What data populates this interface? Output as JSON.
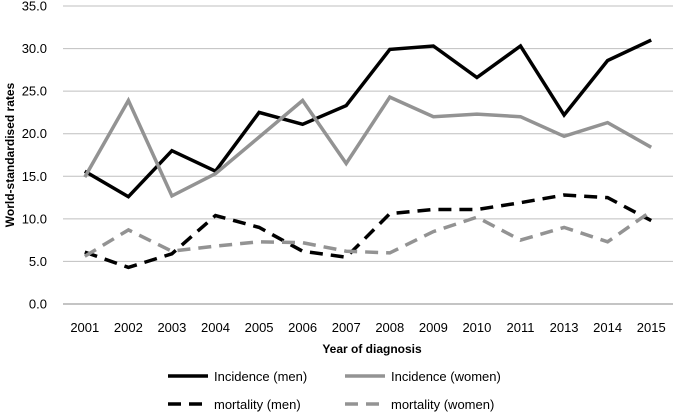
{
  "chart_data": {
    "type": "line",
    "xlabel": "Year of diagnosis",
    "ylabel": "World-standardised rates",
    "ylim": [
      0,
      35
    ],
    "yticks": [
      "0.0",
      "5.0",
      "10.0",
      "15.0",
      "20.0",
      "25.0",
      "30.0",
      "35.0"
    ],
    "grid": "horizontal",
    "legend_position": "bottom",
    "categories": [
      "2001",
      "2002",
      "2003",
      "2004",
      "2005",
      "2006",
      "2007",
      "2008",
      "2009",
      "2010",
      "2011",
      "2013",
      "2014",
      "2015"
    ],
    "series": [
      {
        "name": "Incidence (men)",
        "color": "#000000",
        "dash": "solid",
        "values": [
          15.6,
          12.6,
          18.0,
          15.6,
          22.5,
          21.1,
          23.3,
          29.9,
          30.3,
          26.6,
          30.3,
          22.2,
          28.6,
          31.0
        ]
      },
      {
        "name": "Incidence (women)",
        "color": "#939393",
        "dash": "solid",
        "values": [
          14.9,
          23.9,
          12.7,
          15.3,
          19.6,
          23.9,
          16.5,
          24.3,
          22.0,
          22.3,
          22.0,
          19.7,
          21.3,
          18.4
        ]
      },
      {
        "name": "mortality (men)",
        "color": "#000000",
        "dash": "dashed",
        "values": [
          6.1,
          4.3,
          5.9,
          10.4,
          9.0,
          6.2,
          5.5,
          10.6,
          11.1,
          11.1,
          11.9,
          12.8,
          12.5,
          9.8
        ]
      },
      {
        "name": "mortality (women)",
        "color": "#939393",
        "dash": "dashed",
        "values": [
          5.6,
          8.7,
          6.2,
          6.8,
          7.3,
          7.2,
          6.2,
          6.0,
          8.5,
          10.2,
          7.5,
          9.0,
          7.3,
          10.9
        ]
      }
    ]
  }
}
